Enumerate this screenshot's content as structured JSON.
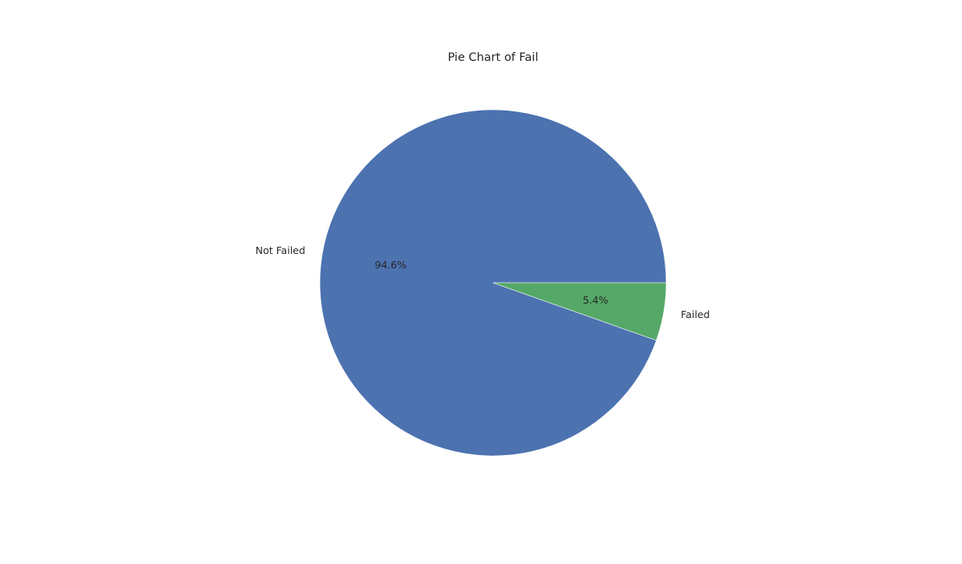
{
  "chart_data": {
    "type": "pie",
    "title": "Pie Chart of Fail",
    "slices": [
      {
        "label": "Not Failed",
        "value": 94.6,
        "pct_label": "94.6%",
        "color": "#4c72b0"
      },
      {
        "label": "Failed",
        "value": 5.4,
        "pct_label": "5.4%",
        "color": "#55a868"
      }
    ],
    "legend": "none"
  }
}
